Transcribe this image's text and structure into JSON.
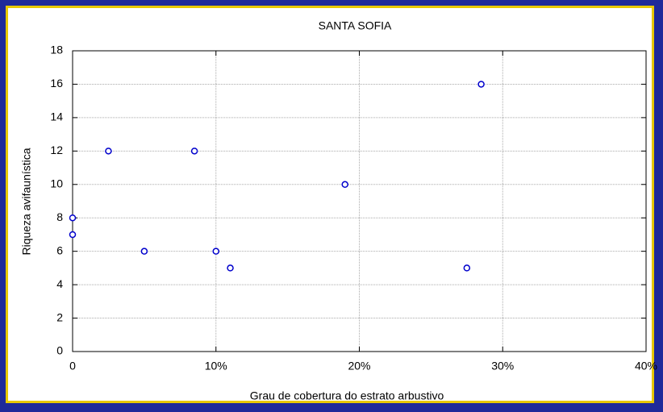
{
  "chart_data": {
    "type": "scatter",
    "title": "SANTA SOFIA",
    "x_label": "Grau de cobertura do estrato arbustivo",
    "y_label": "Riqueza avifaunística",
    "series": [
      {
        "color": "#0000cc",
        "x": [
          0,
          0,
          2.5,
          5,
          8.5,
          10,
          11,
          19,
          27.5,
          28.5
        ],
        "values": [
          8,
          7,
          12,
          6,
          12,
          6,
          5,
          10,
          5,
          16
        ]
      }
    ],
    "xlim": [
      0,
      40
    ],
    "xticks": [
      0,
      {
        "value": 10,
        "label": "10%"
      },
      {
        "value": 20,
        "label": "20%"
      },
      {
        "value": 30,
        "label": "30%"
      },
      {
        "value": 40,
        "label": "40%"
      }
    ],
    "ylim": [
      0,
      18
    ],
    "yticks": [
      0,
      2,
      4,
      6,
      8,
      10,
      12,
      14,
      16,
      18
    ],
    "grid": true
  }
}
